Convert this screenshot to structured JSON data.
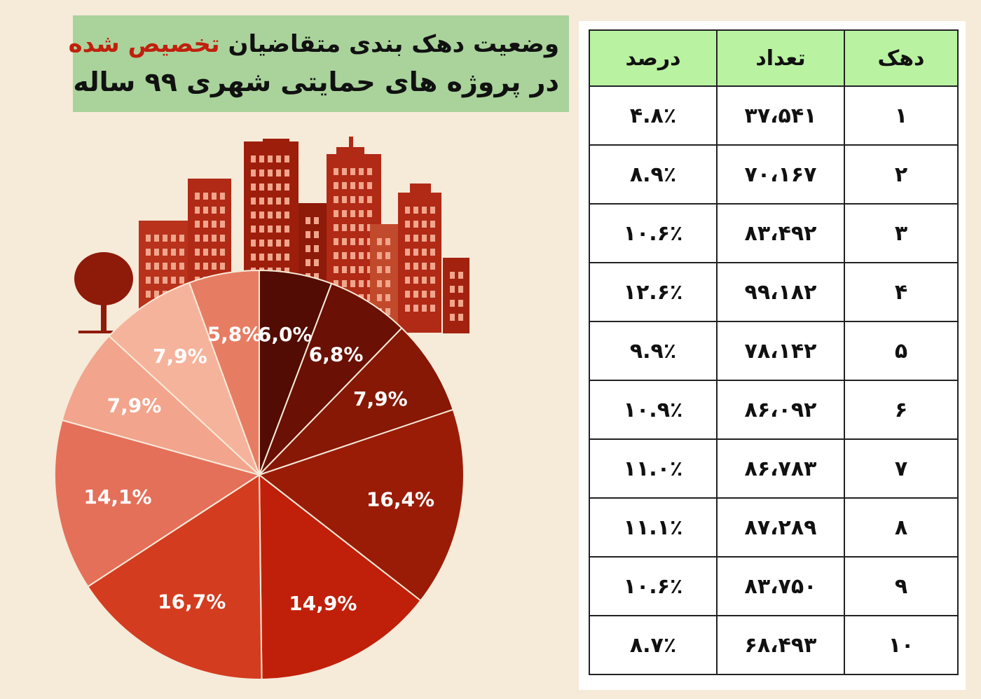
{
  "title": {
    "line1_part1": "وضعیت دهک بندی متقاضیان ",
    "line1_highlight": "تخصیص شده",
    "line2": "در پروژه های حمایتی شهری ۹۹ ساله",
    "highlight_color": "#c0200d",
    "background_color": "#a9d39b"
  },
  "table": {
    "headers": [
      "دهک",
      "تعداد",
      "درصد"
    ],
    "header_color": "#b9f2a1",
    "rows": [
      [
        "۱",
        "۳۷،۵۴۱",
        "۴.۸٪"
      ],
      [
        "۲",
        "۷۰،۱۶۷",
        "۸.۹٪"
      ],
      [
        "۳",
        "۸۳،۴۹۲",
        "۱۰.۶٪"
      ],
      [
        "۴",
        "۹۹،۱۸۲",
        "۱۲.۶٪"
      ],
      [
        "۵",
        "۷۸،۱۴۲",
        "۹.۹٪"
      ],
      [
        "۶",
        "۸۶،۰۹۲",
        "۱۰.۹٪"
      ],
      [
        "۷",
        "۸۶،۷۸۳",
        "۱۱.۰٪"
      ],
      [
        "۸",
        "۸۷،۲۸۹",
        "۱۱.۱٪"
      ],
      [
        "۹",
        "۸۳،۷۵۰",
        "۱۰.۶٪"
      ],
      [
        "۱۰",
        "۶۸،۴۹۳",
        "۸.۷٪"
      ]
    ]
  },
  "chart_data": {
    "type": "pie",
    "start": "top",
    "direction": "clockwise",
    "values": [
      6.0,
      6.8,
      7.9,
      16.4,
      14.9,
      16.7,
      14.1,
      7.9,
      7.9,
      5.8
    ],
    "labels": [
      "6,0%",
      "6,8%",
      "7,9%",
      "16,4%",
      "14,9%",
      "16,7%",
      "14,1%",
      "7,9%",
      "7,9%",
      "5,8%"
    ],
    "colors": [
      "#520c03",
      "#6a1004",
      "#861805",
      "#9a1c07",
      "#c0200a",
      "#d43c1f",
      "#e4705a",
      "#f2a48c",
      "#f6b39c",
      "#e67d63"
    ],
    "label_color": "#ffffff",
    "decoration": "city-skyline-and-tree",
    "decoration_color": "#a81e0c"
  }
}
